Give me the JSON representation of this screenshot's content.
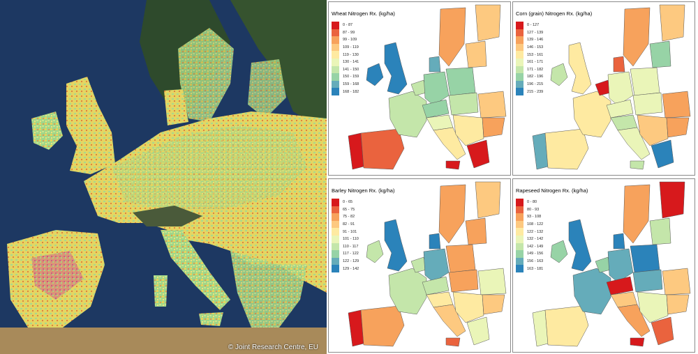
{
  "satellite": {
    "credit": "© Joint Research Centre, EU"
  },
  "panels": [
    {
      "id": "wheat",
      "title": "Wheat Nitrogen Rx. (kg/ha)",
      "legend": [
        "0 - 87",
        "87 - 99",
        "99 - 109",
        "109 - 119",
        "119 - 130",
        "130 - 141",
        "141 - 150",
        "150 - 159",
        "159 - 168",
        "168 - 182"
      ]
    },
    {
      "id": "corn",
      "title": "Corn (grain) Nitrogen Rx. (kg/ha)",
      "legend": [
        "0 - 127",
        "127 - 139",
        "139 - 146",
        "146 - 153",
        "153 - 161",
        "161 - 171",
        "171 - 182",
        "182 - 196",
        "196 - 215",
        "215 - 239"
      ]
    },
    {
      "id": "barley",
      "title": "Barley Nitrogen Rx. (kg/ha)",
      "legend": [
        "0 - 65",
        "65 - 75",
        "75 - 82",
        "82 - 91",
        "91 - 101",
        "101 - 110",
        "110 - 117",
        "117 - 122",
        "122 - 129",
        "129 - 142"
      ]
    },
    {
      "id": "rapeseed",
      "title": "Rapeseed Nitrogen Rx. (kg/ha)",
      "legend": [
        "0 - 80",
        "80 - 93",
        "93 - 108",
        "108 - 122",
        "122 - 132",
        "132 - 142",
        "142 - 149",
        "149 - 156",
        "156 - 163",
        "163 - 181"
      ]
    }
  ],
  "colors": {
    "scale": [
      "#d7191c",
      "#ea633e",
      "#f7a25c",
      "#fdc980",
      "#feeaa1",
      "#eaf5b8",
      "#c4e6aa",
      "#97d3a6",
      "#65acba",
      "#2b83ba"
    ],
    "sea": "#1b3560",
    "land_dark": "#2e4a2c"
  }
}
